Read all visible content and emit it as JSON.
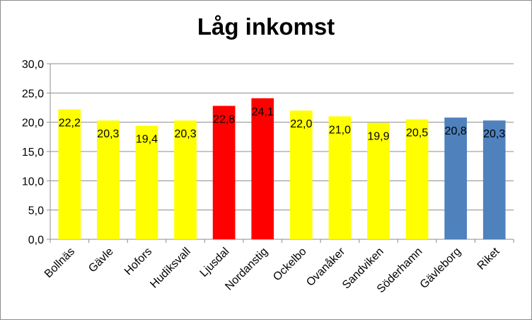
{
  "chart_data": {
    "type": "bar",
    "title": "Låg inkomst",
    "xlabel": "",
    "ylabel": "",
    "ylim": [
      0,
      30
    ],
    "yticks": [
      "0,0",
      "5,0",
      "10,0",
      "15,0",
      "20,0",
      "25,0",
      "30,0"
    ],
    "grid": true,
    "legend": "none",
    "categories": [
      "Bollnäs",
      "Gävle",
      "Hofors",
      "Hudiksvall",
      "Ljusdal",
      "Nordanstig",
      "Ockelbo",
      "Ovanåker",
      "Sandviken",
      "Söderhamn",
      "Gävleborg",
      "Riket"
    ],
    "values": [
      22.2,
      20.3,
      19.4,
      20.3,
      22.8,
      24.1,
      22.0,
      21.0,
      19.9,
      20.5,
      20.8,
      20.3
    ],
    "data_labels": [
      "22,2",
      "20,3",
      "19,4",
      "20,3",
      "22,8",
      "24,1",
      "22,0",
      "21,0",
      "19,9",
      "20,5",
      "20,8",
      "20,3"
    ],
    "bar_colors": [
      "#ffff00",
      "#ffff00",
      "#ffff00",
      "#ffff00",
      "#ff0000",
      "#ff0000",
      "#ffff00",
      "#ffff00",
      "#ffff00",
      "#ffff00",
      "#4f81bd",
      "#4f81bd"
    ]
  }
}
